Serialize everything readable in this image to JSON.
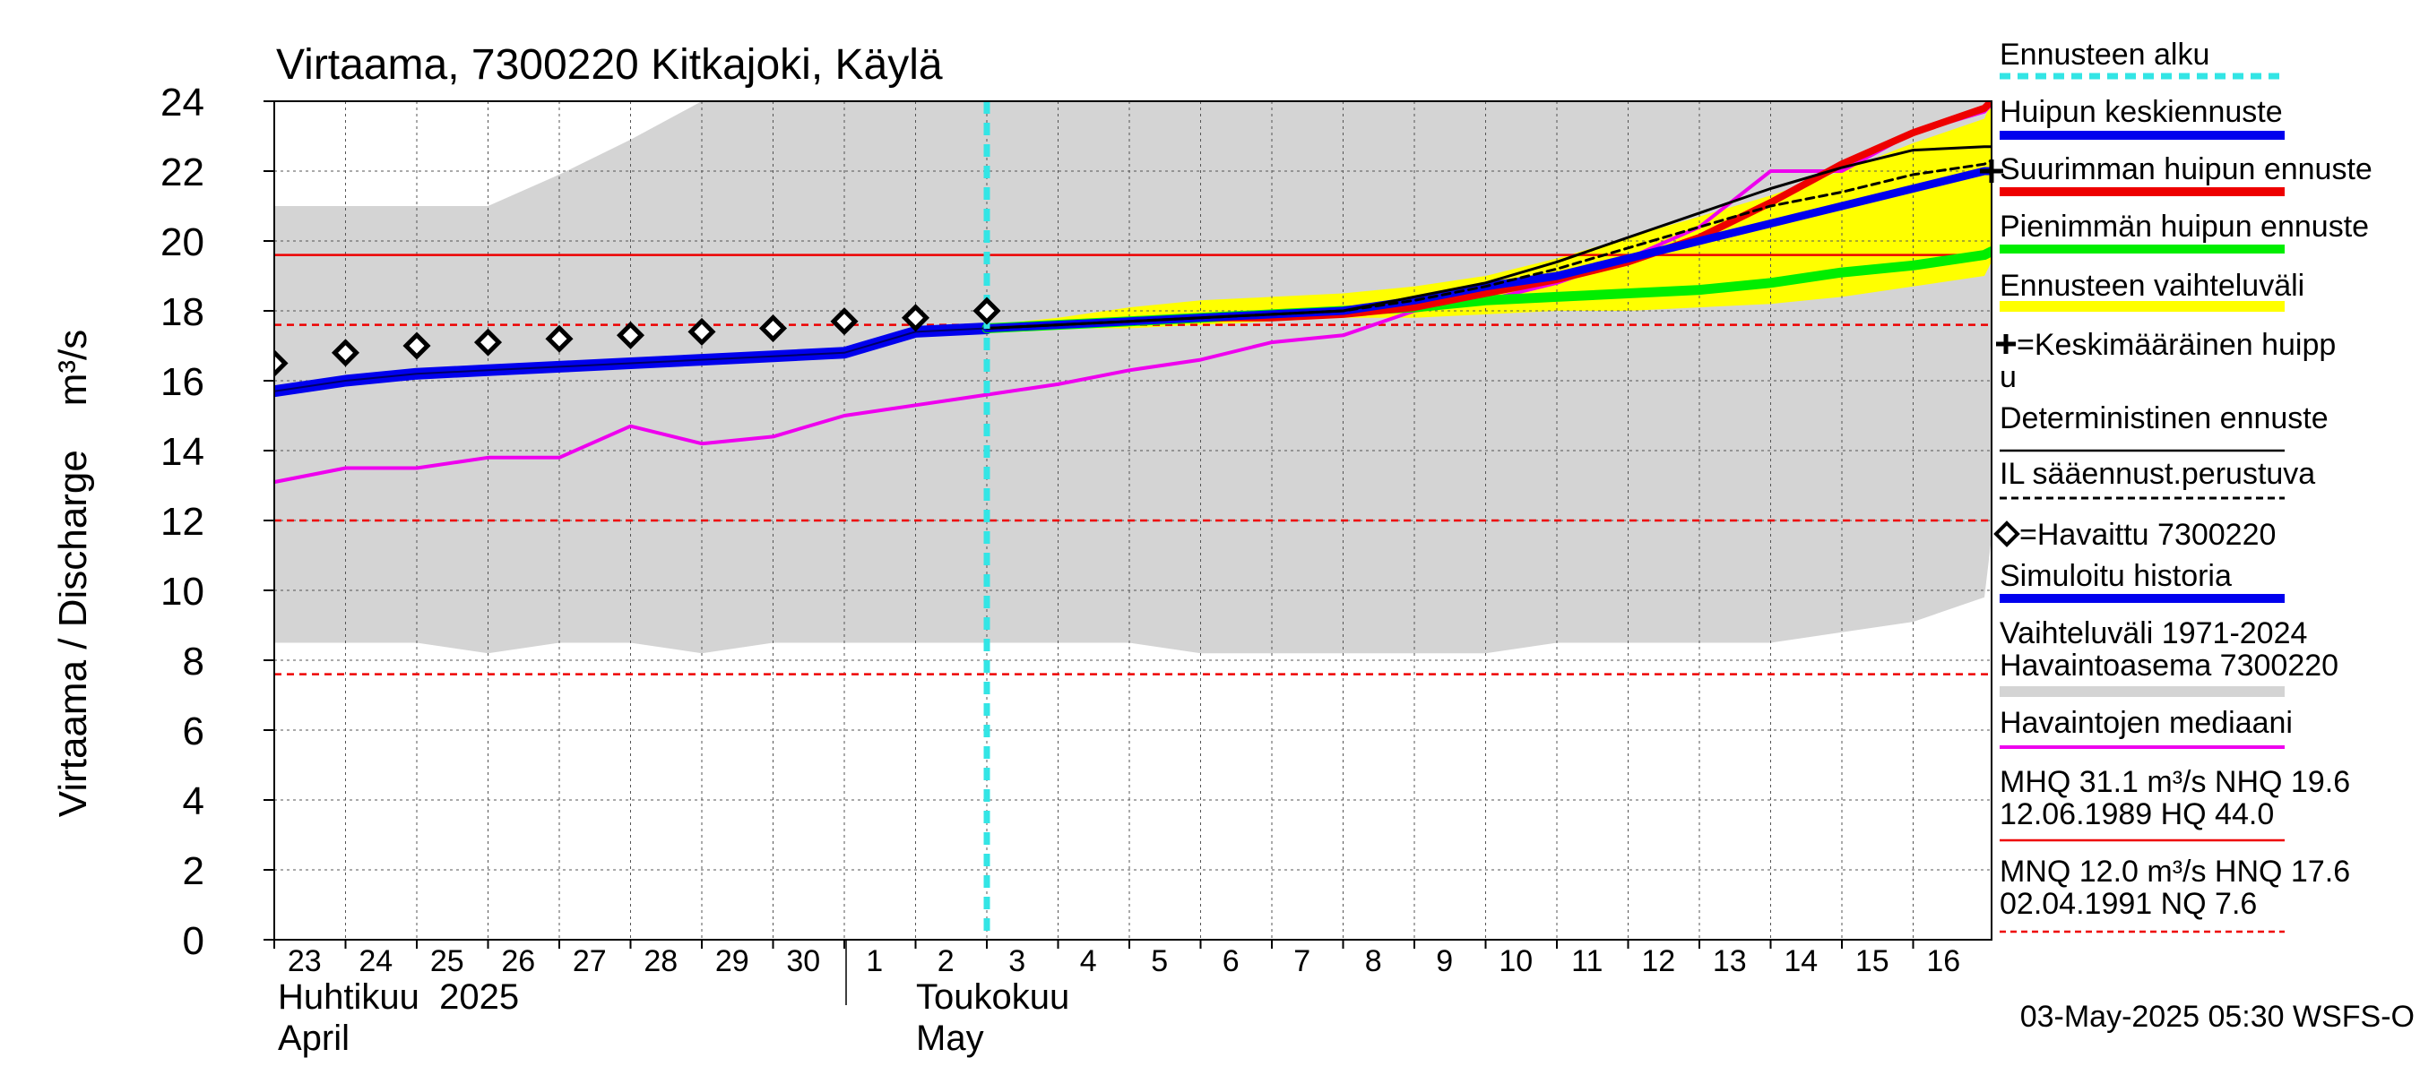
{
  "chart_data": {
    "type": "line",
    "title": "Virtaama, 7300220 Kitkajoki, Käylä",
    "ylabel": "Virtaama / Discharge    m³/s",
    "ylim": [
      0,
      24
    ],
    "yticks": [
      0,
      2,
      4,
      6,
      8,
      10,
      12,
      14,
      16,
      18,
      20,
      22,
      24
    ],
    "xlim": [
      0,
      24.1
    ],
    "day_labels": [
      "23",
      "24",
      "25",
      "26",
      "27",
      "28",
      "29",
      "30",
      "1",
      "2",
      "3",
      "4",
      "5",
      "6",
      "7",
      "8",
      "9",
      "10",
      "11",
      "12",
      "13",
      "14",
      "15",
      "16"
    ],
    "month_labels": {
      "april_fi": "Huhtikuu  2025",
      "april_en": "April",
      "may_fi": "Toukokuu",
      "may_en": "May"
    },
    "forecast_start_x": 10.0,
    "colors": {
      "range_band": "#d4d4d4",
      "forecast_band": "#ffff00",
      "forecast_start": "#33e5e5",
      "mean_peak": "#0000ee",
      "max_peak": "#ee0000",
      "min_peak": "#00ee00",
      "median": "#ee00ee",
      "reference": "#ee0000",
      "deterministic": "#000000",
      "observed": "#000000",
      "simulated": "#0000ee"
    },
    "range_band": {
      "x": [
        0,
        1,
        2,
        3,
        4,
        5,
        6,
        7,
        8,
        9,
        10,
        11,
        12,
        13,
        14,
        15,
        16,
        17,
        18,
        19,
        20,
        21,
        22,
        23,
        24,
        24.1
      ],
      "upper": [
        21,
        21,
        21,
        21,
        21.9,
        22.9,
        24,
        24,
        24,
        24,
        24,
        24,
        24,
        24,
        24,
        24,
        24,
        24,
        24,
        24,
        24,
        24,
        24,
        24,
        24,
        24
      ],
      "lower": [
        8.5,
        8.5,
        8.5,
        8.2,
        8.5,
        8.5,
        8.2,
        8.5,
        8.5,
        8.5,
        8.5,
        8.5,
        8.5,
        8.2,
        8.2,
        8.2,
        8.2,
        8.2,
        8.5,
        8.5,
        8.5,
        8.5,
        8.8,
        9.1,
        9.8,
        11.5
      ]
    },
    "forecast_band": {
      "x": [
        10,
        11,
        12,
        13,
        14,
        15,
        16,
        17,
        18,
        19,
        20,
        21,
        22,
        23,
        24,
        24.1
      ],
      "upper": [
        17.6,
        17.8,
        18.1,
        18.3,
        18.4,
        18.5,
        18.7,
        19.0,
        19.5,
        20.1,
        20.7,
        21.3,
        22.0,
        22.8,
        23.5,
        24.0
      ],
      "lower": [
        17.5,
        17.5,
        17.5,
        17.6,
        17.7,
        17.8,
        17.8,
        17.9,
        18.0,
        18.0,
        18.1,
        18.2,
        18.4,
        18.7,
        19.0,
        19.4
      ]
    },
    "reference_lines": [
      {
        "label": "HQ/NHQ",
        "value": 19.6,
        "style": "solid"
      },
      {
        "label": "HNQ",
        "value": 17.6,
        "style": "dashed"
      },
      {
        "label": "MNQ",
        "value": 12.0,
        "style": "dashed"
      },
      {
        "label": "NQ",
        "value": 7.6,
        "style": "dashed"
      }
    ],
    "series": [
      {
        "name": "Havaintojen mediaani",
        "x": [
          0,
          1,
          2,
          3,
          4,
          5,
          6,
          7,
          8,
          9,
          10,
          11,
          12,
          13,
          14,
          15,
          16,
          17,
          18,
          19,
          20,
          21,
          22,
          23,
          24,
          24.1
        ],
        "values": [
          13.1,
          13.5,
          13.5,
          13.8,
          13.8,
          14.7,
          14.2,
          14.4,
          15.0,
          15.3,
          15.6,
          15.9,
          16.3,
          16.6,
          17.1,
          17.3,
          18.0,
          18.3,
          18.8,
          19.5,
          20.4,
          22.0,
          22.0,
          23.1,
          23.7,
          23.9
        ]
      },
      {
        "name": "Simuloitu historia",
        "x": [
          0,
          1,
          2,
          3,
          4,
          5,
          6,
          7,
          8,
          9,
          10
        ],
        "values": [
          15.7,
          16.0,
          16.2,
          16.3,
          16.4,
          16.5,
          16.6,
          16.7,
          16.8,
          17.4,
          17.5
        ]
      },
      {
        "name": "Pienimmän huipun ennuste",
        "x": [
          10,
          11,
          12,
          13,
          14,
          15,
          16,
          17,
          18,
          19,
          20,
          21,
          22,
          23,
          24,
          24.1
        ],
        "values": [
          17.5,
          17.6,
          17.7,
          17.8,
          17.9,
          18.0,
          18.1,
          18.3,
          18.4,
          18.5,
          18.6,
          18.8,
          19.1,
          19.3,
          19.6,
          19.7
        ]
      },
      {
        "name": "Suurimman huipun ennuste",
        "x": [
          10,
          11,
          12,
          13,
          14,
          15,
          16,
          17,
          18,
          19,
          20,
          21,
          22,
          23,
          24,
          24.1
        ],
        "values": [
          17.5,
          17.6,
          17.7,
          17.8,
          17.8,
          17.9,
          18.1,
          18.5,
          18.9,
          19.4,
          20.1,
          21.1,
          22.2,
          23.1,
          23.8,
          24.0
        ]
      },
      {
        "name": "Huipun keskiennuste",
        "x": [
          10,
          11,
          12,
          13,
          14,
          15,
          16,
          17,
          18,
          19,
          20,
          21,
          22,
          23,
          24,
          24.1
        ],
        "values": [
          17.5,
          17.6,
          17.7,
          17.8,
          17.9,
          18.0,
          18.3,
          18.7,
          19.0,
          19.5,
          20.0,
          20.5,
          21.0,
          21.5,
          22.0,
          22.0
        ]
      },
      {
        "name": "Deterministinen ennuste",
        "x": [
          10,
          11,
          12,
          13,
          14,
          15,
          16,
          17,
          18,
          19,
          20,
          21,
          22,
          23,
          24,
          24.1
        ],
        "values": [
          17.5,
          17.6,
          17.7,
          17.8,
          17.9,
          18.0,
          18.4,
          18.8,
          19.4,
          20.1,
          20.8,
          21.5,
          22.1,
          22.6,
          22.7,
          22.7
        ]
      },
      {
        "name": "IL sääennust.perustuva",
        "x": [
          10,
          11,
          12,
          13,
          14,
          15,
          16,
          17,
          18,
          19,
          20,
          21,
          22,
          23,
          24,
          24.1
        ],
        "values": [
          17.5,
          17.6,
          17.7,
          17.8,
          17.9,
          18.0,
          18.3,
          18.7,
          19.2,
          19.8,
          20.4,
          21.0,
          21.4,
          21.9,
          22.2,
          22.3
        ]
      },
      {
        "name": "Havaittu 7300220",
        "x": [
          0,
          1,
          2,
          3,
          4,
          5,
          6,
          7,
          8,
          9,
          10
        ],
        "values": [
          16.5,
          16.8,
          17.0,
          17.1,
          17.2,
          17.3,
          17.4,
          17.5,
          17.7,
          17.8,
          18.0
        ]
      }
    ],
    "mean_peak_marker": {
      "x": 24.1,
      "value": 22.0
    },
    "legend": [
      "Ennusteen alku",
      "Huipun keskiennuste",
      "Suurimman huipun ennuste",
      "Pienimmän huipun ennuste",
      "Ennusteen vaihteluväli",
      "=Keskimääräinen huipp",
      "u",
      "Deterministinen ennuste",
      "IL sääennust.perustuva",
      "=Havaittu 7300220",
      "Simuloitu historia",
      "Vaihteluväli 1971-2024",
      " Havaintoasema 7300220",
      "Havaintojen mediaani",
      "MHQ 31.1 m³/s NHQ 19.6",
      "12.06.1989 HQ 44.0",
      "MNQ 12.0 m³/s HNQ 17.6",
      "02.04.1991 NQ  7.6"
    ],
    "footer": "03-May-2025 05:30 WSFS-O"
  }
}
